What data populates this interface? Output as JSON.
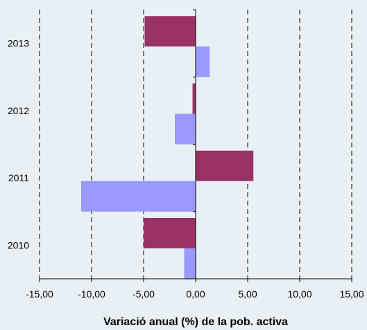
{
  "chart_data": {
    "type": "bar",
    "orientation": "horizontal",
    "categories": [
      "2010",
      "2011",
      "2012",
      "2013"
    ],
    "series": [
      {
        "values": [
          -1.1,
          -11.0,
          -2.0,
          1.35
        ],
        "color": "#9999ff"
      },
      {
        "values": [
          -5.0,
          5.55,
          -0.3,
          -4.9
        ],
        "color": "#993366"
      }
    ],
    "xlabel": "Variació anual (%) de la pob. activa",
    "xlim": [
      -15,
      15
    ],
    "xticks": [
      -15,
      -10,
      -5,
      0,
      5,
      10,
      15
    ],
    "xtick_labels": [
      "-15,00",
      "-10,00",
      "-5,00",
      "0,00",
      "5,00",
      "10,00",
      "15,00"
    ],
    "grid": "vertical dashed",
    "colors": {
      "background": "#e8f0f5",
      "gridline": "#000000"
    }
  }
}
